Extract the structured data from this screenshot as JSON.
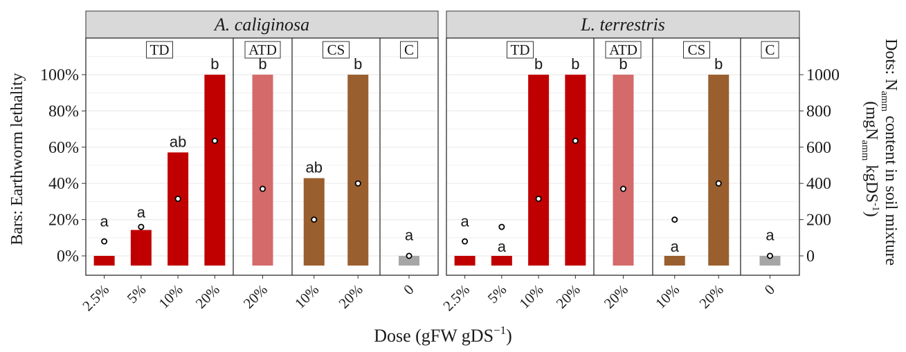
{
  "chart_data": {
    "type": "bar",
    "y_left_label": "Bars: Earthworm lethality",
    "y_right_label": {
      "line1_pre": "Dots: N",
      "line1_sub": "amm",
      "line1_post": " content in soil mixture",
      "line2_pre": "(mgN",
      "line2_sub": "amm",
      "line2_mid": " kgDS",
      "line2_sup": "-1",
      "line2_post": ")"
    },
    "x_label": {
      "pre": "Dose (gFW gDS",
      "sup": "−1",
      "post": ")"
    },
    "y_left_ticks": [
      "0%",
      "20%",
      "40%",
      "60%",
      "80%",
      "100%"
    ],
    "y_left_range": [
      0,
      100
    ],
    "y_right_ticks": [
      "0",
      "200",
      "400",
      "600",
      "800",
      "1000"
    ],
    "y_right_range": [
      0,
      1000
    ],
    "colors": {
      "TD": "#c00000",
      "ATD": "#d46a6a",
      "CS": "#9a5f2e",
      "C": "#a6a6a6",
      "strip": "#d9d9d9",
      "grid": "#ebebeb"
    },
    "panels": [
      {
        "species": "A. caliginosa",
        "groups": [
          {
            "label": "TD",
            "items": [
              {
                "dose": "2.5%",
                "lethality": 0,
                "nh": 80,
                "letter": "a"
              },
              {
                "dose": "5%",
                "lethality": 14.3,
                "nh": 160,
                "letter": "a"
              },
              {
                "dose": "10%",
                "lethality": 57.1,
                "nh": 315,
                "letter": "ab"
              },
              {
                "dose": "20%",
                "lethality": 100,
                "nh": 635,
                "letter": "b"
              }
            ]
          },
          {
            "label": "ATD",
            "items": [
              {
                "dose": "20%",
                "lethality": 100,
                "nh": 370,
                "letter": "b"
              }
            ]
          },
          {
            "label": "CS",
            "items": [
              {
                "dose": "10%",
                "lethality": 42.9,
                "nh": 200,
                "letter": "ab"
              },
              {
                "dose": "20%",
                "lethality": 100,
                "nh": 400,
                "letter": "b"
              }
            ]
          },
          {
            "label": "C",
            "items": [
              {
                "dose": "0",
                "lethality": 0,
                "nh": 0,
                "letter": "a"
              }
            ]
          }
        ]
      },
      {
        "species": "L. terrestris",
        "groups": [
          {
            "label": "TD",
            "items": [
              {
                "dose": "2.5%",
                "lethality": 0,
                "nh": 80,
                "letter": "a"
              },
              {
                "dose": "5%",
                "lethality": 0,
                "nh": 160,
                "letter": "a"
              },
              {
                "dose": "10%",
                "lethality": 100,
                "nh": 315,
                "letter": "b"
              },
              {
                "dose": "20%",
                "lethality": 100,
                "nh": 635,
                "letter": "b"
              }
            ]
          },
          {
            "label": "ATD",
            "items": [
              {
                "dose": "20%",
                "lethality": 100,
                "nh": 370,
                "letter": "b"
              }
            ]
          },
          {
            "label": "CS",
            "items": [
              {
                "dose": "10%",
                "lethality": 0,
                "nh": 200,
                "letter": "a"
              },
              {
                "dose": "20%",
                "lethality": 100,
                "nh": 400,
                "letter": "b"
              }
            ]
          },
          {
            "label": "C",
            "items": [
              {
                "dose": "0",
                "lethality": 0,
                "nh": 0,
                "letter": "a"
              }
            ]
          }
        ]
      }
    ]
  }
}
